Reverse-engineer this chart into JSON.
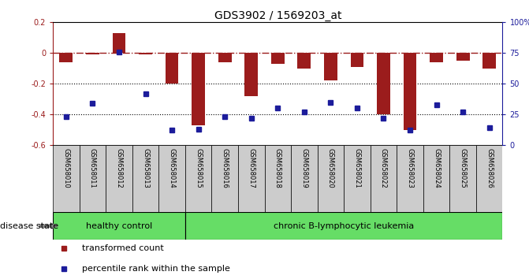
{
  "title": "GDS3902 / 1569203_at",
  "samples": [
    "GSM658010",
    "GSM658011",
    "GSM658012",
    "GSM658013",
    "GSM658014",
    "GSM658015",
    "GSM658016",
    "GSM658017",
    "GSM658018",
    "GSM658019",
    "GSM658020",
    "GSM658021",
    "GSM658022",
    "GSM658023",
    "GSM658024",
    "GSM658025",
    "GSM658026"
  ],
  "transformed_count": [
    -0.06,
    -0.01,
    0.13,
    -0.01,
    -0.2,
    -0.47,
    -0.06,
    -0.28,
    -0.07,
    -0.1,
    -0.18,
    -0.09,
    -0.4,
    -0.5,
    -0.06,
    -0.05,
    -0.1
  ],
  "percentile_rank": [
    23,
    34,
    76,
    42,
    12,
    13,
    23,
    22,
    30,
    27,
    35,
    30,
    22,
    12,
    33,
    27,
    14
  ],
  "bar_color": "#9B1C1C",
  "dot_color": "#1C1C9B",
  "healthy_count": 5,
  "group_labels": [
    "healthy control",
    "chronic B-lymphocytic leukemia"
  ],
  "group_color": "#66DD66",
  "ylim_left": [
    -0.6,
    0.2
  ],
  "ylim_right": [
    0,
    100
  ],
  "yticks_left": [
    -0.6,
    -0.4,
    -0.2,
    0.0,
    0.2
  ],
  "ytick_labels_left": [
    "-0.6",
    "-0.4",
    "-0.2",
    "0",
    "0.2"
  ],
  "yticks_right": [
    0,
    25,
    50,
    75,
    100
  ],
  "ytick_labels_right": [
    "0",
    "25",
    "50",
    "75",
    "100%"
  ],
  "hline_y": 0.0,
  "dotted_lines": [
    -0.2,
    -0.4
  ],
  "disease_state_label": "disease state",
  "legend_items": [
    "transformed count",
    "percentile rank within the sample"
  ],
  "tick_bg_color": "#CCCCCC"
}
